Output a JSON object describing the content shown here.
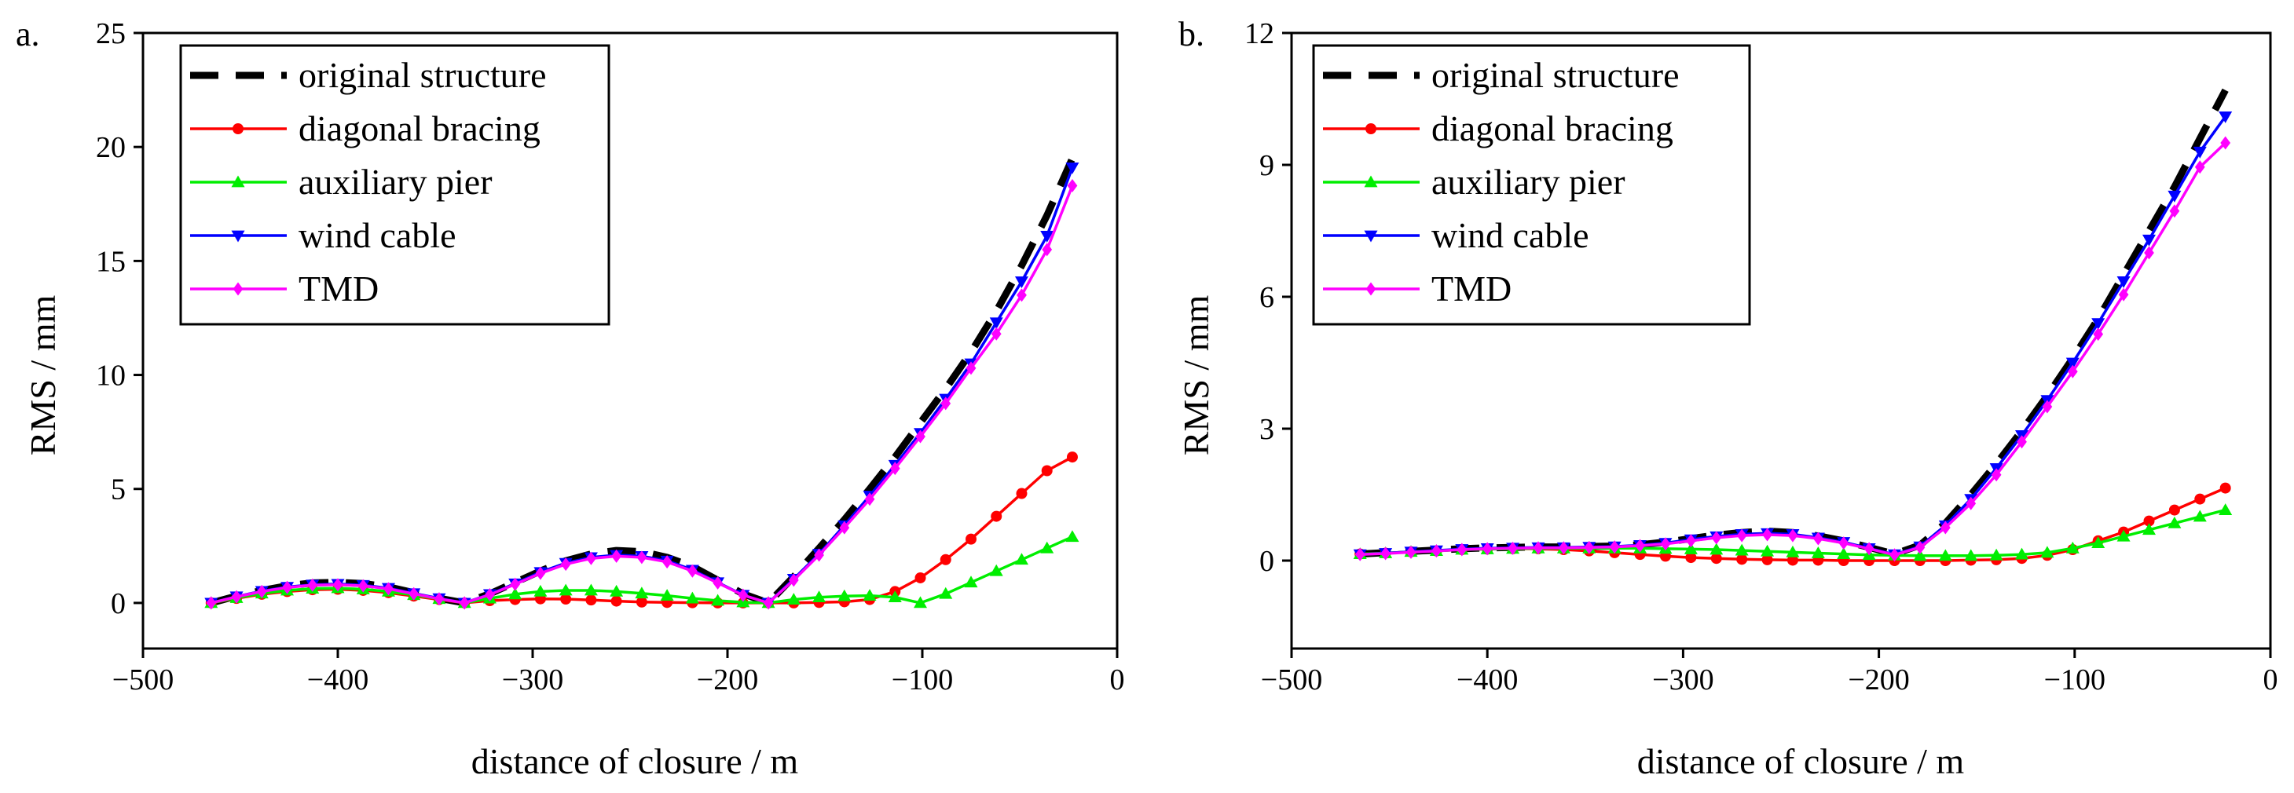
{
  "chart_data": [
    {
      "panel_label": "a.",
      "type": "line",
      "xlabel": "distance of closure  / m",
      "ylabel": "RMS / mm",
      "xlim": [
        -500,
        0
      ],
      "ylim": [
        -2,
        25
      ],
      "xticks": [
        -500,
        -400,
        -300,
        -200,
        -100,
        0
      ],
      "yticks": [
        0,
        5,
        10,
        15,
        20,
        25
      ],
      "xtick_labels": [
        "−500",
        "−400",
        "−300",
        "−200",
        "−100",
        "0"
      ],
      "ytick_labels": [
        "0",
        "5",
        "10",
        "15",
        "20",
        "25"
      ],
      "legend_position": "top-left",
      "grid": false,
      "x": [
        -465,
        -452,
        -439,
        -426,
        -413,
        -400,
        -387,
        -374,
        -361,
        -348,
        -335,
        -322,
        -309,
        -296,
        -283,
        -270,
        -257,
        -244,
        -231,
        -218,
        -205,
        -192,
        -179,
        -166,
        -153,
        -140,
        -127,
        -114,
        -101,
        -88,
        -75,
        -62,
        -49,
        -36,
        -23
      ],
      "series": [
        {
          "name": "original structure",
          "color": "#000000",
          "style": "dashed",
          "marker": "none",
          "values": [
            0.0,
            0.3,
            0.55,
            0.75,
            0.88,
            0.9,
            0.85,
            0.7,
            0.45,
            0.2,
            0.0,
            0.4,
            0.9,
            1.4,
            1.85,
            2.15,
            2.3,
            2.25,
            2.0,
            1.6,
            1.0,
            0.4,
            0.0,
            1.15,
            2.4,
            3.65,
            5.0,
            6.4,
            7.9,
            9.4,
            11.0,
            12.8,
            14.8,
            17.0,
            19.5
          ]
        },
        {
          "name": "diagonal bracing",
          "color": "#ff0000",
          "style": "solid",
          "marker": "circle",
          "values": [
            0.0,
            0.2,
            0.38,
            0.5,
            0.58,
            0.6,
            0.55,
            0.45,
            0.3,
            0.15,
            0.0,
            0.1,
            0.15,
            0.18,
            0.17,
            0.13,
            0.08,
            0.04,
            0.02,
            0.01,
            0.0,
            0.0,
            0.0,
            0.0,
            0.02,
            0.05,
            0.15,
            0.5,
            1.1,
            1.9,
            2.8,
            3.8,
            4.8,
            5.8,
            6.4
          ]
        },
        {
          "name": "auxiliary pier",
          "color": "#00ee00",
          "style": "solid",
          "marker": "triangle-up",
          "values": [
            0.0,
            0.22,
            0.42,
            0.55,
            0.63,
            0.65,
            0.6,
            0.5,
            0.35,
            0.18,
            0.0,
            0.2,
            0.38,
            0.5,
            0.55,
            0.55,
            0.5,
            0.42,
            0.32,
            0.2,
            0.1,
            0.03,
            0.0,
            0.15,
            0.25,
            0.3,
            0.32,
            0.25,
            0.0,
            0.4,
            0.9,
            1.4,
            1.9,
            2.4,
            2.9
          ]
        },
        {
          "name": "wind cable",
          "color": "#0000ff",
          "style": "solid",
          "marker": "triangle-down",
          "values": [
            0.0,
            0.28,
            0.52,
            0.7,
            0.8,
            0.83,
            0.78,
            0.65,
            0.42,
            0.2,
            0.0,
            0.38,
            0.85,
            1.35,
            1.75,
            2.0,
            2.1,
            2.05,
            1.85,
            1.45,
            0.9,
            0.35,
            0.0,
            1.05,
            2.15,
            3.4,
            4.7,
            6.05,
            7.45,
            8.95,
            10.5,
            12.3,
            14.1,
            16.1,
            19.1
          ]
        },
        {
          "name": "TMD",
          "color": "#ff00ff",
          "style": "solid",
          "marker": "diamond",
          "values": [
            0.0,
            0.27,
            0.5,
            0.68,
            0.78,
            0.8,
            0.75,
            0.62,
            0.4,
            0.18,
            0.0,
            0.36,
            0.82,
            1.3,
            1.7,
            1.95,
            2.05,
            2.0,
            1.8,
            1.4,
            0.88,
            0.34,
            0.0,
            1.0,
            2.1,
            3.3,
            4.55,
            5.9,
            7.3,
            8.75,
            10.3,
            11.8,
            13.5,
            15.5,
            18.3
          ]
        }
      ]
    },
    {
      "panel_label": "b.",
      "type": "line",
      "xlabel": "distance of closure  / m",
      "ylabel": "RMS / mm",
      "xlim": [
        -500,
        0
      ],
      "ylim": [
        -2,
        12
      ],
      "xticks": [
        -500,
        -400,
        -300,
        -200,
        -100,
        0
      ],
      "yticks": [
        0,
        3,
        6,
        9,
        12
      ],
      "xtick_labels": [
        "−500",
        "−400",
        "−300",
        "−200",
        "−100",
        "0"
      ],
      "ytick_labels": [
        "0",
        "3",
        "6",
        "9",
        "12"
      ],
      "legend_position": "top-left",
      "grid": false,
      "x": [
        -465,
        -452,
        -439,
        -426,
        -413,
        -400,
        -387,
        -374,
        -361,
        -348,
        -335,
        -322,
        -309,
        -296,
        -283,
        -270,
        -257,
        -244,
        -231,
        -218,
        -205,
        -192,
        -179,
        -166,
        -153,
        -140,
        -127,
        -114,
        -101,
        -88,
        -75,
        -62,
        -49,
        -36,
        -23
      ],
      "series": [
        {
          "name": "original structure",
          "color": "#000000",
          "style": "dashed",
          "marker": "none",
          "values": [
            0.15,
            0.18,
            0.21,
            0.24,
            0.27,
            0.29,
            0.3,
            0.31,
            0.31,
            0.32,
            0.33,
            0.36,
            0.42,
            0.5,
            0.58,
            0.64,
            0.67,
            0.64,
            0.56,
            0.45,
            0.3,
            0.15,
            0.35,
            0.85,
            1.5,
            2.2,
            2.95,
            3.75,
            4.6,
            5.5,
            6.5,
            7.5,
            8.5,
            9.6,
            10.7
          ]
        },
        {
          "name": "diagonal bracing",
          "color": "#ff0000",
          "style": "solid",
          "marker": "circle",
          "values": [
            0.15,
            0.17,
            0.2,
            0.22,
            0.25,
            0.26,
            0.27,
            0.27,
            0.25,
            0.22,
            0.18,
            0.14,
            0.1,
            0.07,
            0.05,
            0.03,
            0.02,
            0.01,
            0.01,
            0.0,
            0.0,
            0.0,
            0.0,
            0.0,
            0.01,
            0.02,
            0.05,
            0.12,
            0.25,
            0.45,
            0.65,
            0.9,
            1.15,
            1.4,
            1.65
          ]
        },
        {
          "name": "auxiliary pier",
          "color": "#00ee00",
          "style": "solid",
          "marker": "triangle-up",
          "values": [
            0.15,
            0.17,
            0.2,
            0.22,
            0.25,
            0.26,
            0.27,
            0.28,
            0.28,
            0.28,
            0.28,
            0.28,
            0.27,
            0.26,
            0.25,
            0.23,
            0.21,
            0.19,
            0.17,
            0.15,
            0.13,
            0.12,
            0.11,
            0.11,
            0.11,
            0.12,
            0.14,
            0.18,
            0.28,
            0.4,
            0.55,
            0.7,
            0.85,
            1.0,
            1.15
          ]
        },
        {
          "name": "wind cable",
          "color": "#0000ff",
          "style": "solid",
          "marker": "triangle-down",
          "values": [
            0.14,
            0.17,
            0.2,
            0.23,
            0.26,
            0.28,
            0.29,
            0.3,
            0.3,
            0.31,
            0.32,
            0.35,
            0.4,
            0.48,
            0.55,
            0.6,
            0.62,
            0.6,
            0.52,
            0.42,
            0.28,
            0.14,
            0.32,
            0.8,
            1.4,
            2.1,
            2.85,
            3.65,
            4.5,
            5.4,
            6.35,
            7.3,
            8.3,
            9.3,
            10.1
          ]
        },
        {
          "name": "TMD",
          "color": "#ff00ff",
          "style": "solid",
          "marker": "diamond",
          "values": [
            0.14,
            0.16,
            0.19,
            0.22,
            0.25,
            0.27,
            0.28,
            0.29,
            0.29,
            0.3,
            0.31,
            0.34,
            0.38,
            0.45,
            0.52,
            0.57,
            0.59,
            0.57,
            0.5,
            0.4,
            0.27,
            0.13,
            0.3,
            0.75,
            1.3,
            1.95,
            2.7,
            3.5,
            4.3,
            5.15,
            6.05,
            7.0,
            7.95,
            8.95,
            9.5
          ]
        }
      ]
    }
  ]
}
